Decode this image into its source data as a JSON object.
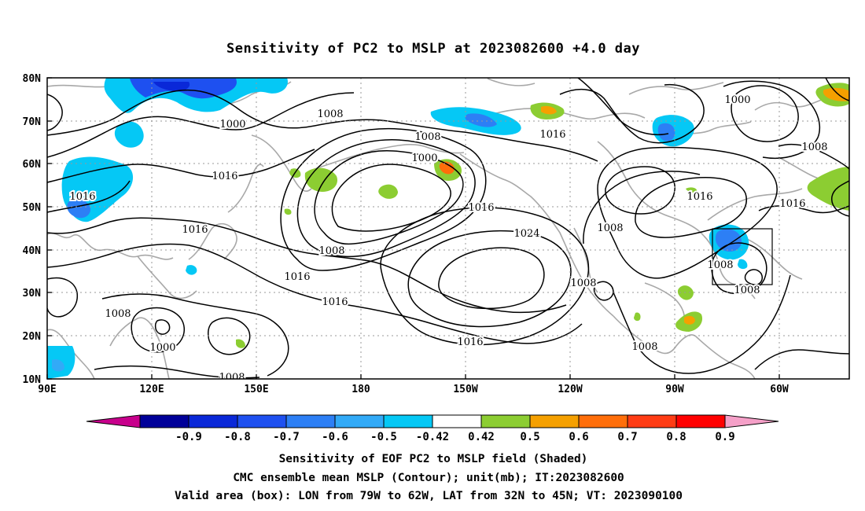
{
  "title": "Sensitivity of PC2 to MSLP at 2023082600 +4.0 day",
  "map": {
    "lon_ticks": [
      "90E",
      "120E",
      "150E",
      "180",
      "150W",
      "120W",
      "90W",
      "60W"
    ],
    "lat_ticks": [
      "80N",
      "70N",
      "60N",
      "50N",
      "40N",
      "30N",
      "20N",
      "10N"
    ],
    "gridlines": true,
    "contour_unit": "mb",
    "contour_labels": [
      "1008",
      "1000",
      "1008",
      "1016",
      "1000",
      "1016",
      "1016",
      "1016",
      "1008",
      "1024",
      "1016",
      "1008",
      "1016",
      "1008",
      "1008",
      "1000",
      "1008",
      "1016",
      "1016",
      "1008",
      "1008",
      "1000",
      "1008",
      "1016",
      "1016"
    ],
    "valid_area": {
      "lon_from": "79W",
      "lon_to": "62W",
      "lat_from": "32N",
      "lat_to": "45N"
    }
  },
  "colorbar": {
    "levels": [
      "-0.9",
      "-0.8",
      "-0.7",
      "-0.6",
      "-0.5",
      "-0.42",
      "0.42",
      "0.5",
      "0.6",
      "0.7",
      "0.8",
      "0.9"
    ],
    "colors": [
      "#000099",
      "#0a28d8",
      "#1e50f0",
      "#2d7ff5",
      "#32aaf7",
      "#05c8f5",
      "#ffffff",
      "#8ccd32",
      "#f5a000",
      "#ff6e0a",
      "#ff3c14",
      "#ff0000"
    ],
    "low_extend_color": "#c8008c",
    "high_extend_color": "#f5a0c8"
  },
  "captions": [
    "Sensitivity of EOF PC2 to MSLP field (Shaded)",
    "CMC ensemble mean MSLP (Contour); unit(mb); IT:2023082600",
    "Valid area (box): LON from 79W to 62W, LAT from 32N to 45N; VT: 2023090100"
  ]
}
